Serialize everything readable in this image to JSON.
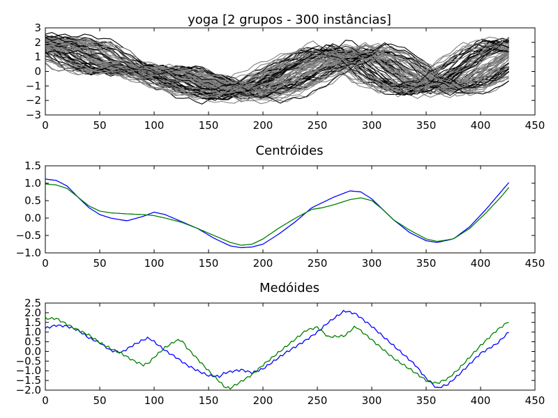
{
  "chart_data": [
    {
      "type": "line",
      "title": "yoga [2 grupos - 300 instâncias]",
      "xlabel": "",
      "ylabel": "",
      "xlim": [
        0,
        450
      ],
      "ylim": [
        -3,
        3
      ],
      "xticks": [
        "0",
        "50",
        "100",
        "150",
        "200",
        "250",
        "300",
        "350",
        "400",
        "450"
      ],
      "yticks": [
        "−3",
        "−2",
        "−1",
        "0",
        "1",
        "2",
        "3"
      ],
      "grid": false,
      "instances": 300,
      "series_colors": [
        "#000000",
        "#808080"
      ],
      "x": [
        0,
        25,
        50,
        75,
        100,
        125,
        150,
        175,
        200,
        225,
        250,
        275,
        300,
        325,
        350,
        375,
        400,
        426
      ],
      "series": [
        {
          "color": "#000000",
          "values": [
            1.1,
            0.9,
            0.2,
            0.0,
            0.1,
            -0.3,
            -0.7,
            -0.9,
            -0.7,
            -0.2,
            0.4,
            0.9,
            0.5,
            -0.3,
            -0.7,
            -0.5,
            0.3,
            1.0
          ]
        },
        {
          "color": "#808080",
          "values": [
            1.0,
            0.85,
            0.25,
            0.05,
            0.0,
            -0.3,
            -0.6,
            -0.8,
            -0.5,
            0.0,
            0.4,
            0.7,
            0.4,
            -0.3,
            -0.7,
            -0.4,
            0.2,
            0.9
          ]
        }
      ]
    },
    {
      "type": "line",
      "title": "Centróides",
      "xlabel": "",
      "ylabel": "",
      "xlim": [
        0,
        450
      ],
      "ylim": [
        -1.0,
        1.5
      ],
      "xticks": [
        "0",
        "50",
        "100",
        "150",
        "200",
        "250",
        "300",
        "350",
        "400",
        "450"
      ],
      "yticks": [
        "−1.0",
        "−0.5",
        "0.0",
        "0.5",
        "1.0",
        "1.5"
      ],
      "grid": false,
      "x": [
        0,
        10,
        20,
        30,
        40,
        50,
        60,
        75,
        90,
        100,
        110,
        125,
        140,
        155,
        170,
        180,
        190,
        200,
        215,
        230,
        245,
        255,
        265,
        280,
        290,
        300,
        310,
        320,
        335,
        350,
        360,
        375,
        390,
        405,
        420,
        426
      ],
      "series": [
        {
          "color": "#0000ff",
          "values": [
            1.12,
            1.08,
            0.92,
            0.6,
            0.3,
            0.1,
            0.0,
            -0.08,
            0.05,
            0.17,
            0.1,
            -0.1,
            -0.3,
            -0.58,
            -0.8,
            -0.85,
            -0.83,
            -0.75,
            -0.45,
            -0.1,
            0.3,
            0.45,
            0.6,
            0.78,
            0.75,
            0.55,
            0.25,
            -0.05,
            -0.42,
            -0.65,
            -0.7,
            -0.6,
            -0.25,
            0.25,
            0.8,
            1.02
          ]
        },
        {
          "color": "#008000",
          "values": [
            0.98,
            0.95,
            0.85,
            0.6,
            0.35,
            0.2,
            0.15,
            0.12,
            0.1,
            0.07,
            0.0,
            -0.12,
            -0.3,
            -0.5,
            -0.7,
            -0.78,
            -0.75,
            -0.6,
            -0.28,
            0.0,
            0.25,
            0.3,
            0.38,
            0.53,
            0.58,
            0.5,
            0.25,
            -0.05,
            -0.35,
            -0.6,
            -0.67,
            -0.6,
            -0.3,
            0.15,
            0.65,
            0.88
          ]
        }
      ]
    },
    {
      "type": "line",
      "title": "Medóides",
      "xlabel": "",
      "ylabel": "",
      "xlim": [
        0,
        450
      ],
      "ylim": [
        -2.0,
        2.5
      ],
      "xticks": [
        "0",
        "50",
        "100",
        "150",
        "200",
        "250",
        "300",
        "350",
        "400",
        "450"
      ],
      "yticks": [
        "−2.0",
        "−1.5",
        "−1.0",
        "−0.5",
        "0.0",
        "0.5",
        "1.0",
        "1.5",
        "2.0",
        "2.5"
      ],
      "grid": false,
      "x": [
        0,
        10,
        20,
        30,
        40,
        50,
        60,
        70,
        80,
        90,
        95,
        100,
        110,
        120,
        125,
        130,
        140,
        150,
        160,
        165,
        170,
        180,
        190,
        200,
        220,
        240,
        250,
        260,
        275,
        285,
        300,
        320,
        340,
        350,
        360,
        370,
        380,
        400,
        415,
        426
      ],
      "series": [
        {
          "color": "#0000ff",
          "values": [
            1.2,
            1.35,
            1.3,
            1.1,
            0.7,
            0.45,
            0.05,
            -0.05,
            0.3,
            0.6,
            0.7,
            0.5,
            0.05,
            -0.3,
            -0.5,
            -0.7,
            -1.0,
            -1.25,
            -1.3,
            -1.1,
            -1.05,
            -0.95,
            -1.1,
            -0.9,
            -0.1,
            0.6,
            1.0,
            1.5,
            2.1,
            1.95,
            1.3,
            0.3,
            -0.7,
            -1.4,
            -1.9,
            -1.7,
            -1.2,
            -0.1,
            0.4,
            1.0
          ]
        },
        {
          "color": "#008000",
          "values": [
            1.7,
            1.7,
            1.4,
            1.1,
            0.85,
            0.45,
            0.15,
            -0.1,
            -0.45,
            -0.7,
            -0.6,
            -0.3,
            0.2,
            0.55,
            0.6,
            0.2,
            -0.4,
            -1.0,
            -1.55,
            -1.85,
            -1.9,
            -1.55,
            -1.2,
            -0.7,
            0.2,
            1.1,
            1.25,
            0.75,
            0.8,
            1.3,
            0.6,
            -0.35,
            -1.1,
            -1.5,
            -1.65,
            -1.4,
            -0.9,
            0.3,
            1.1,
            1.55
          ]
        }
      ]
    }
  ]
}
